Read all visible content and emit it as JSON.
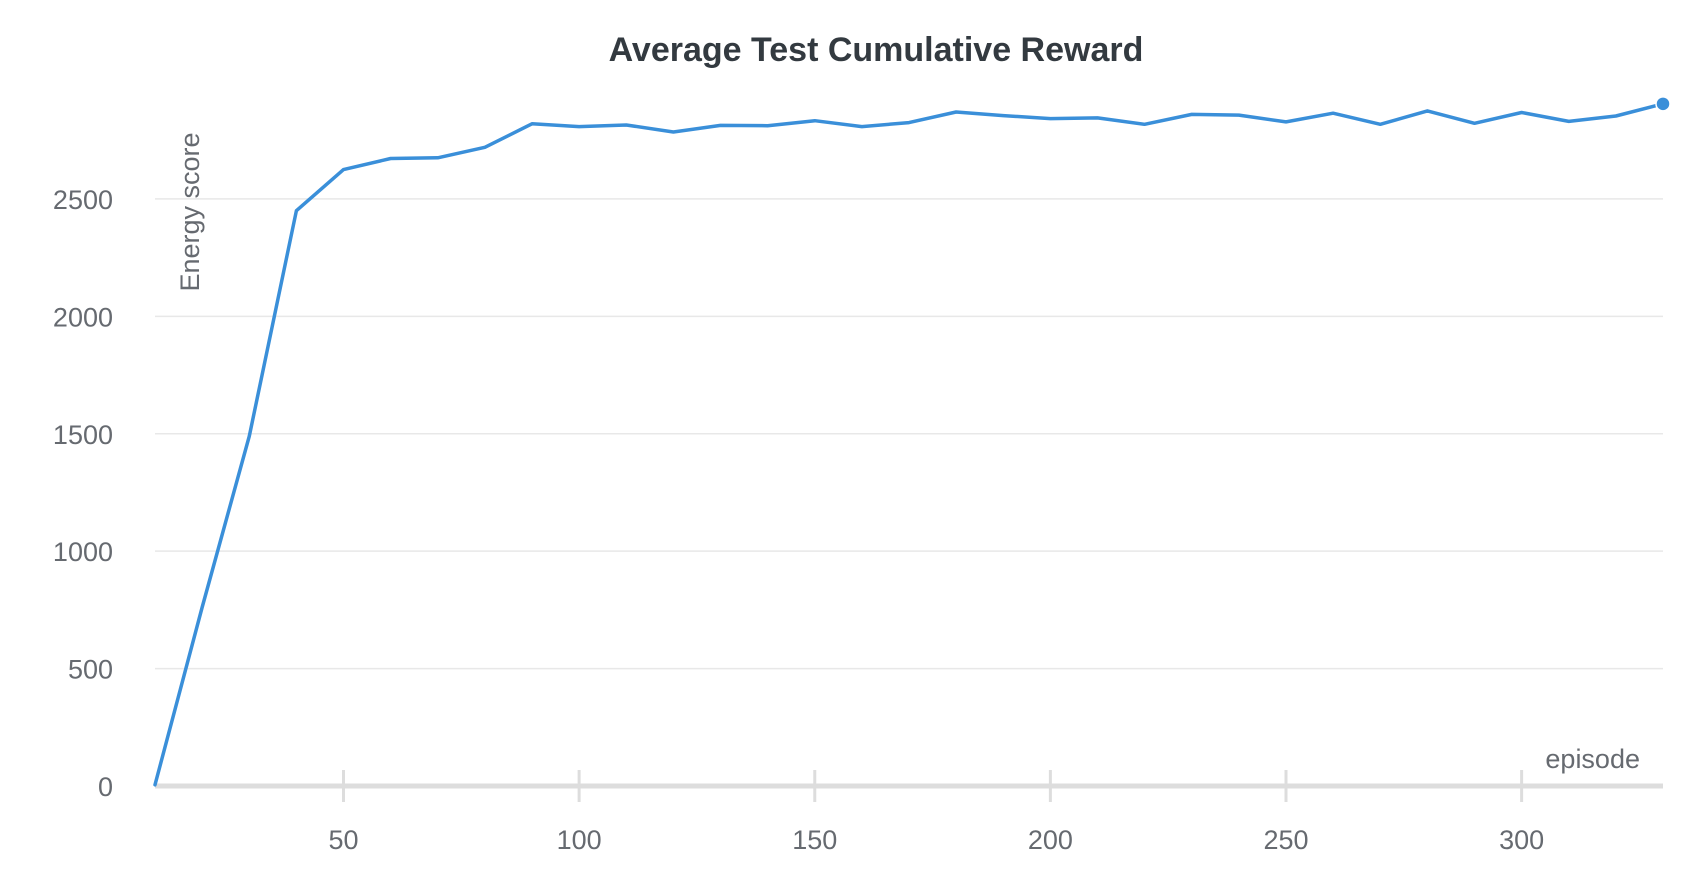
{
  "chart_data": {
    "type": "line",
    "title": "Average Test Cumulative Reward",
    "xlabel": "episode",
    "ylabel": "Energy score",
    "xlim": [
      10,
      330
    ],
    "ylim": [
      0,
      2900
    ],
    "x_ticks": [
      50,
      100,
      150,
      200,
      250,
      300
    ],
    "y_ticks": [
      0,
      500,
      1000,
      1500,
      2000,
      2500
    ],
    "grid": true,
    "legend": "none",
    "series": [
      {
        "color": "#3a8fd9",
        "x": [
          10,
          20,
          30,
          40,
          50,
          60,
          70,
          80,
          90,
          100,
          110,
          120,
          130,
          140,
          150,
          160,
          170,
          180,
          190,
          200,
          210,
          220,
          230,
          240,
          250,
          260,
          270,
          280,
          290,
          300,
          310,
          320,
          330
        ],
        "y": [
          5,
          760,
          1490,
          2450,
          2625,
          2672,
          2675,
          2720,
          2820,
          2808,
          2815,
          2785,
          2813,
          2812,
          2833,
          2808,
          2825,
          2870,
          2855,
          2842,
          2845,
          2818,
          2860,
          2857,
          2828,
          2865,
          2818,
          2875,
          2822,
          2868,
          2830,
          2853,
          2905
        ]
      }
    ]
  }
}
